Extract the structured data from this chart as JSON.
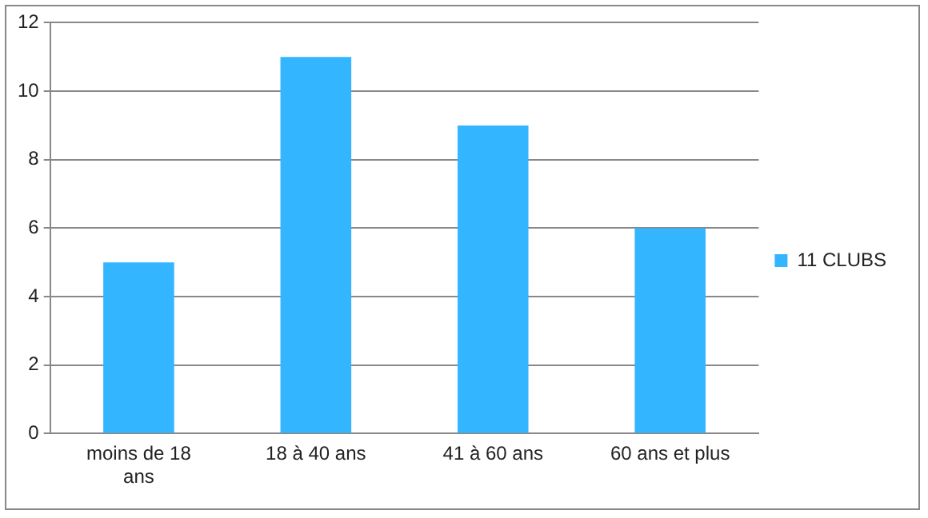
{
  "chart_data": {
    "type": "bar",
    "categories": [
      "moins de 18 ans",
      "18 à 40 ans",
      "41 à 60 ans",
      "60 ans et plus"
    ],
    "series": [
      {
        "name": "11 CLUBS",
        "color": "#33b5ff",
        "values": [
          5,
          11,
          9,
          6
        ]
      }
    ],
    "ylim": [
      0,
      12
    ],
    "yticks": [
      0,
      2,
      4,
      6,
      8,
      10,
      12
    ],
    "grid": "y",
    "legend": "right"
  }
}
